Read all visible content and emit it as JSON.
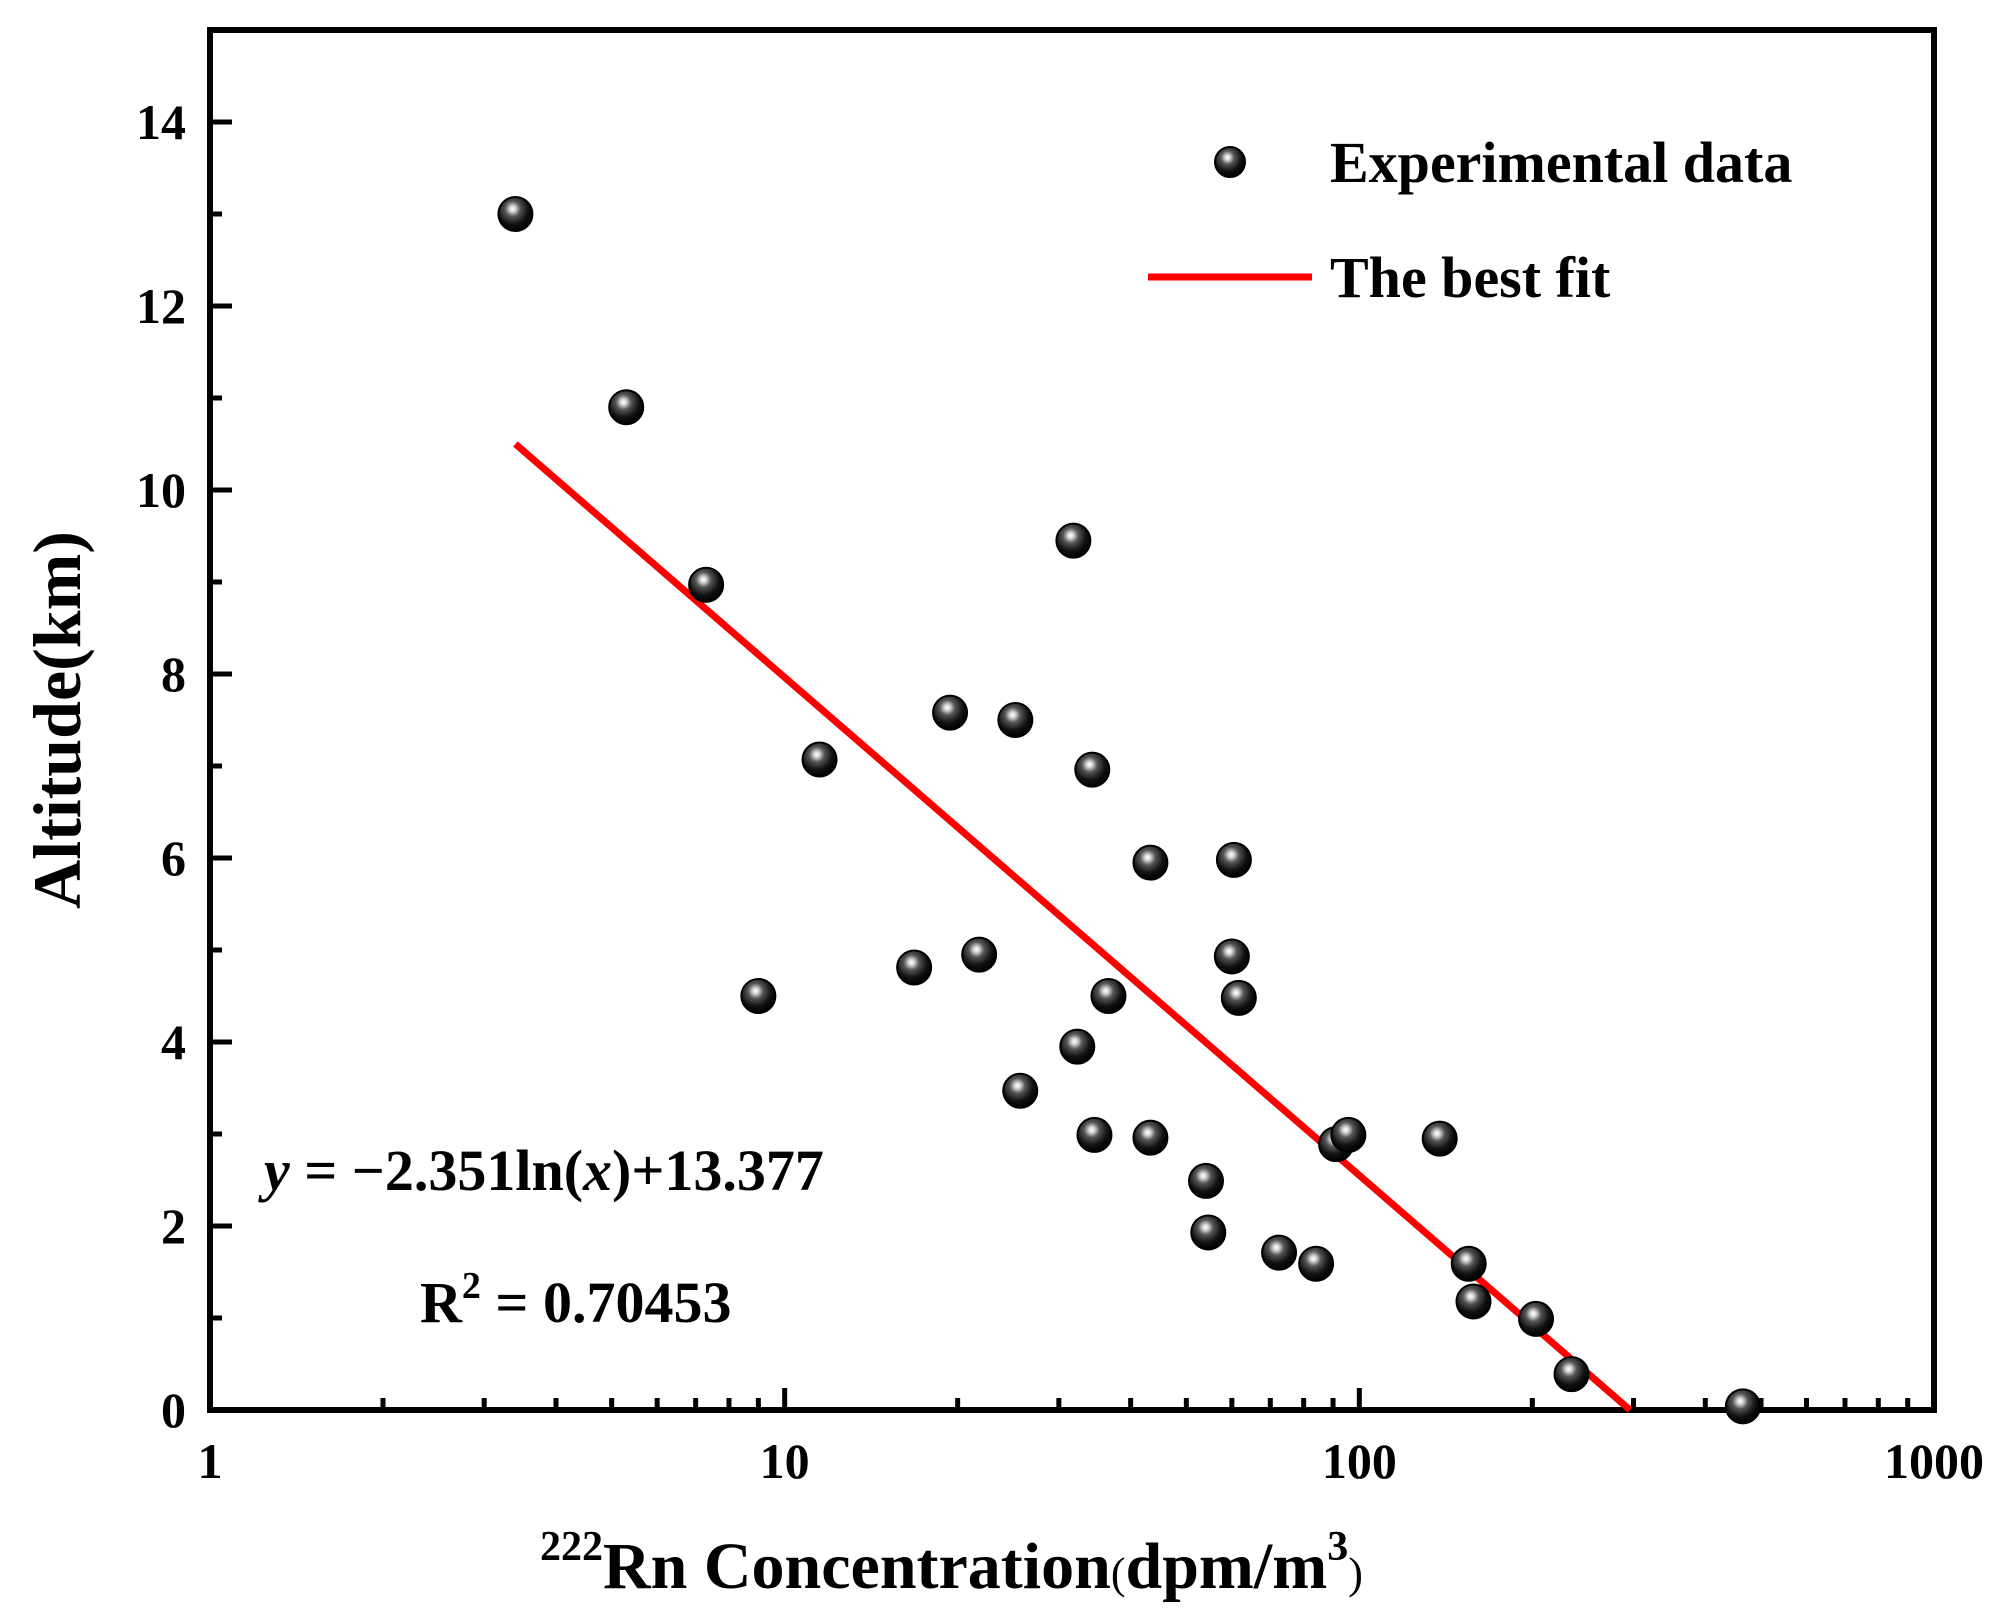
{
  "chart_data": {
    "type": "scatter",
    "xscale": "log",
    "xlim": [
      1,
      1000
    ],
    "ylim": [
      0,
      15
    ],
    "xticks": [
      {
        "value": 1,
        "label": "1"
      },
      {
        "value": 10,
        "label": "10"
      },
      {
        "value": 100,
        "label": "100"
      },
      {
        "value": 1000,
        "label": "1000"
      }
    ],
    "yticks": [
      {
        "value": 0,
        "label": "0"
      },
      {
        "value": 2,
        "label": "2"
      },
      {
        "value": 4,
        "label": "4"
      },
      {
        "value": 6,
        "label": "6"
      },
      {
        "value": 8,
        "label": "8"
      },
      {
        "value": 10,
        "label": "10"
      },
      {
        "value": 12,
        "label": "12"
      },
      {
        "value": 14,
        "label": "14"
      }
    ],
    "xlabel": {
      "sup": "222",
      "main": "Rn Concentration",
      "units_open": "(",
      "units": "dpm/m",
      "units_sup": "3",
      "units_close": ")"
    },
    "ylabel": "Altitude(km)",
    "legend": {
      "position": "top-right",
      "scatter_label": "Experimental data",
      "line_label": "The best fit"
    },
    "fit": {
      "slope": -2.351,
      "intercept": 13.377,
      "x_start": 3.4,
      "equation_label": {
        "y": "y",
        "eq": " = −2.351ln(",
        "x": "x",
        "rest": ")+13.377"
      },
      "r2_label": {
        "r": "R",
        "sup": "2",
        "value": " = 0.70453"
      }
    },
    "colors": {
      "fit_line": "#ff0000",
      "points": "#000000",
      "axes": "#000000"
    },
    "series": [
      {
        "name": "Experimental data",
        "points": [
          {
            "x": 3.4,
            "y": 13.0
          },
          {
            "x": 5.3,
            "y": 10.9
          },
          {
            "x": 7.3,
            "y": 8.97
          },
          {
            "x": 9.0,
            "y": 4.5
          },
          {
            "x": 11.5,
            "y": 7.07
          },
          {
            "x": 16.8,
            "y": 4.81
          },
          {
            "x": 19.4,
            "y": 7.58
          },
          {
            "x": 21.8,
            "y": 4.95
          },
          {
            "x": 25.2,
            "y": 7.5
          },
          {
            "x": 25.7,
            "y": 3.47
          },
          {
            "x": 31.8,
            "y": 9.45
          },
          {
            "x": 32.3,
            "y": 3.95
          },
          {
            "x": 34.3,
            "y": 6.96
          },
          {
            "x": 34.6,
            "y": 2.99
          },
          {
            "x": 36.6,
            "y": 4.5
          },
          {
            "x": 43.3,
            "y": 5.95
          },
          {
            "x": 43.3,
            "y": 2.96
          },
          {
            "x": 54.1,
            "y": 2.49
          },
          {
            "x": 54.6,
            "y": 1.93
          },
          {
            "x": 60.0,
            "y": 4.93
          },
          {
            "x": 60.5,
            "y": 5.98
          },
          {
            "x": 61.7,
            "y": 4.48
          },
          {
            "x": 72.5,
            "y": 1.71
          },
          {
            "x": 84.1,
            "y": 1.59
          },
          {
            "x": 91.1,
            "y": 2.89
          },
          {
            "x": 95.7,
            "y": 2.99
          },
          {
            "x": 138.0,
            "y": 2.95
          },
          {
            "x": 155.0,
            "y": 1.59
          },
          {
            "x": 158.0,
            "y": 1.18
          },
          {
            "x": 203.0,
            "y": 0.99
          },
          {
            "x": 234.0,
            "y": 0.39
          },
          {
            "x": 465.0,
            "y": 0.04
          }
        ]
      }
    ]
  }
}
